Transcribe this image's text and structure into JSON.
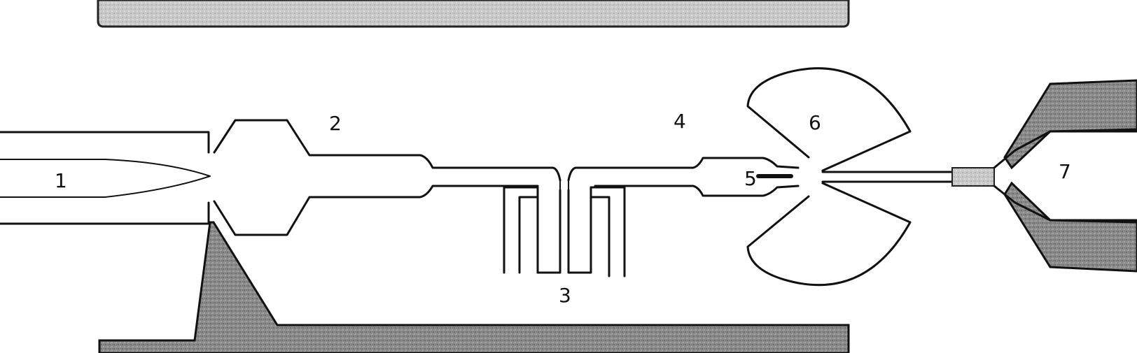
{
  "diagram": {
    "labels": [
      {
        "id": "1",
        "text": "1"
      },
      {
        "id": "2",
        "text": "2"
      },
      {
        "id": "3",
        "text": "3"
      },
      {
        "id": "4",
        "text": "4"
      },
      {
        "id": "5",
        "text": "5"
      },
      {
        "id": "6",
        "text": "6"
      },
      {
        "id": "7",
        "text": "7"
      }
    ]
  }
}
